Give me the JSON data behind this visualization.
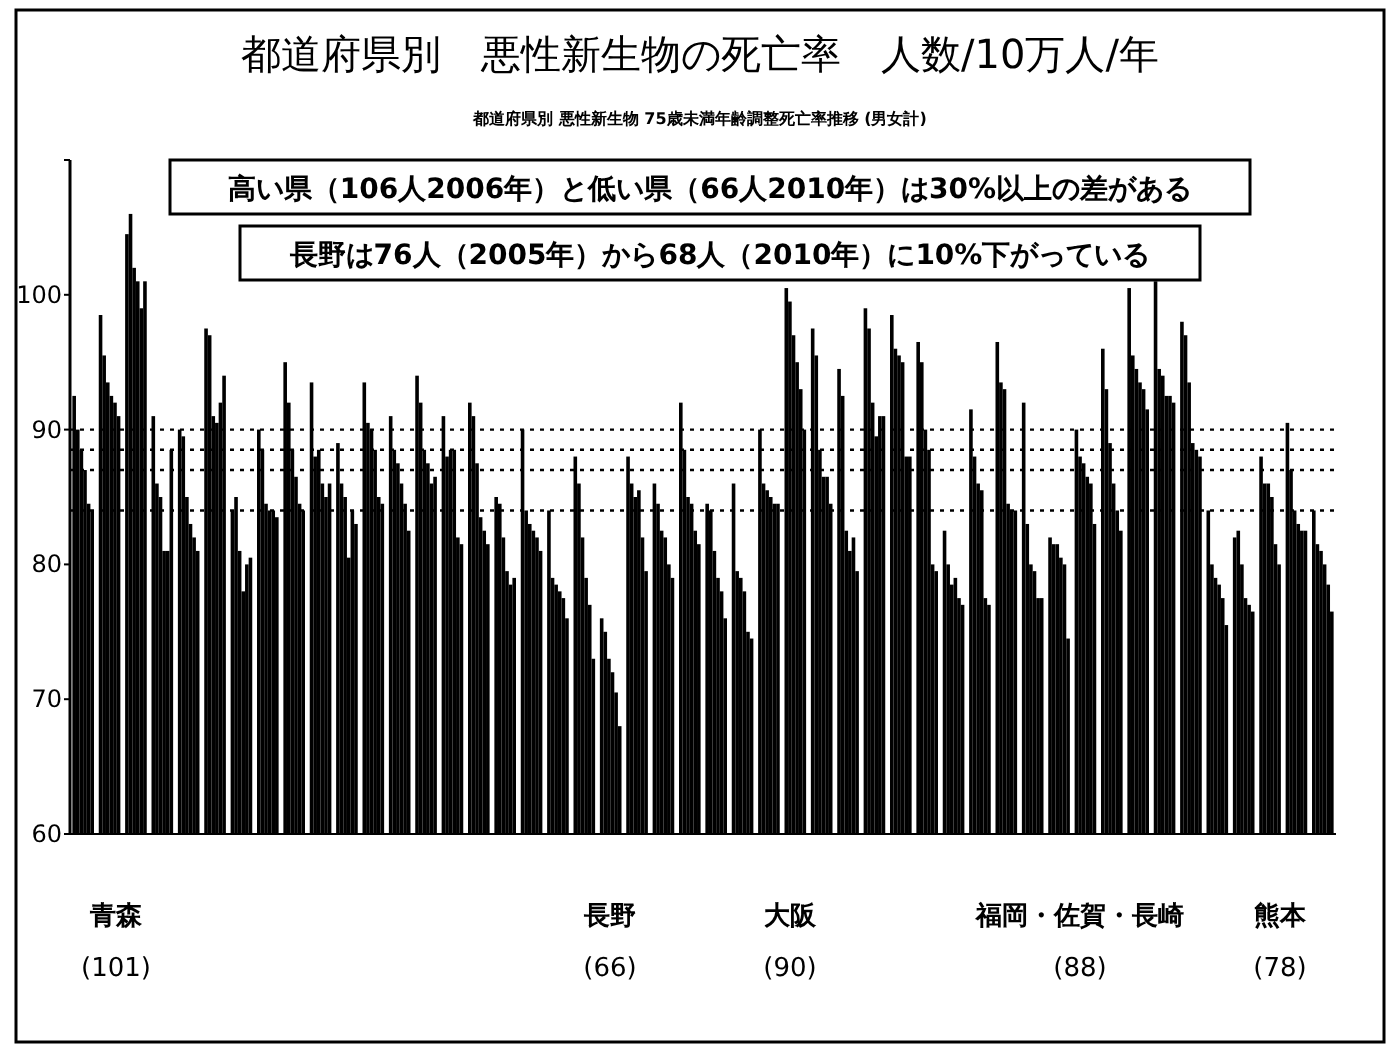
{
  "chart_data": {
    "type": "bar",
    "title": "都道府県別　悪性新生物の死亡率　人数/10万人/年",
    "subtitle": "都道府県別 悪性新生物 75歳未満年齢調整死亡率推移 (男女計)",
    "categories": [
      null,
      null,
      null,
      null,
      null,
      null,
      null,
      null,
      null,
      null,
      null,
      null,
      null,
      null,
      null,
      null,
      null,
      null,
      null,
      null,
      null,
      null,
      null,
      null,
      null,
      null,
      null,
      null,
      null,
      null,
      null,
      null,
      null,
      null,
      null,
      null,
      null,
      null,
      null,
      null,
      null,
      null,
      null,
      null,
      null,
      null,
      null,
      null
    ],
    "series": [
      {
        "color": "#000000",
        "values": [
          92.5,
          98.5,
          104.5,
          91,
          90,
          97.5,
          84,
          90,
          95,
          93.5,
          89,
          93.5,
          91,
          94,
          91,
          92,
          85,
          90,
          84,
          88,
          76,
          88,
          86,
          92,
          84.5,
          86,
          90,
          100.5,
          97.5,
          94.5,
          99,
          98.5,
          96.5,
          82.5,
          91.5,
          96.5,
          92,
          82,
          90,
          96,
          100.5,
          101,
          98,
          84,
          82,
          88,
          90.5,
          84
        ]
      },
      {
        "color": "#000000",
        "values": [
          90,
          95.5,
          106,
          86,
          89.5,
          97,
          85,
          88.5,
          92,
          88,
          86,
          90.5,
          88.5,
          92,
          88,
          91,
          84.5,
          84,
          79,
          86,
          75,
          86,
          84.5,
          88.5,
          84,
          79.5,
          86,
          99.5,
          95.5,
          92.5,
          97.5,
          96,
          95,
          80,
          88,
          93.5,
          83,
          81.5,
          88,
          93,
          95.5,
          94.5,
          97,
          80,
          82.5,
          86,
          87,
          81.5
        ]
      },
      {
        "color": "#000000",
        "values": [
          88.5,
          93.5,
          102,
          85,
          85,
          91,
          81,
          84.5,
          88.5,
          88.5,
          85,
          90,
          87.5,
          88.5,
          88.5,
          87.5,
          82,
          83,
          78.5,
          82,
          73,
          85,
          82.5,
          85,
          81,
          79,
          85.5,
          97,
          88.5,
          82.5,
          92,
          95.5,
          90,
          78.5,
          86,
          93,
          80,
          81.5,
          87.5,
          89,
          94.5,
          94,
          93.5,
          79,
          80,
          86,
          84,
          81
        ]
      },
      {
        "color": "#000000",
        "values": [
          87,
          92.5,
          101,
          81,
          83,
          90.5,
          78,
          84,
          86.5,
          86,
          80.5,
          88.5,
          86,
          87.5,
          88.5,
          83.5,
          79.5,
          82.5,
          78,
          79,
          72,
          85.5,
          82,
          84.5,
          79,
          78,
          85,
          95,
          86.5,
          81,
          89.5,
          95,
          88.5,
          79,
          85.5,
          84.5,
          79.5,
          80.5,
          86.5,
          86,
          93.5,
          92.5,
          89,
          78.5,
          77.5,
          85,
          83,
          80
        ]
      },
      {
        "color": "#000000",
        "values": [
          84.5,
          92,
          99,
          81,
          82,
          92,
          80,
          84,
          84.5,
          85,
          84,
          85,
          84.5,
          86,
          82,
          82.5,
          78.5,
          82,
          77.5,
          77,
          70.5,
          82,
          80,
          82.5,
          78,
          75,
          84.5,
          93,
          86.5,
          82,
          91,
          88,
          80,
          77.5,
          77.5,
          84,
          77.5,
          80,
          86,
          84,
          93,
          92.5,
          88.5,
          77.5,
          77,
          81.5,
          82.5,
          78.5
        ]
      },
      {
        "color": "#000000",
        "values": [
          84,
          91,
          101,
          88.5,
          81,
          94,
          80.5,
          83.5,
          84,
          86,
          83,
          84.5,
          82.5,
          86.5,
          81.5,
          81.5,
          79,
          81,
          76,
          73,
          68,
          79.5,
          79,
          81.5,
          76,
          74.5,
          84.5,
          90,
          84.5,
          79.5,
          91,
          88,
          79.5,
          77,
          77,
          84,
          77.5,
          74.5,
          83,
          82.5,
          91.5,
          92,
          88,
          75.5,
          76.5,
          80,
          82.5,
          76.5
        ]
      }
    ],
    "ylim": [
      60,
      110
    ],
    "yticks": [
      60,
      70,
      80,
      90,
      100,
      {
        "value": 110,
        "label": null
      }
    ],
    "ref_lines": [
      {
        "axis": "y",
        "value": 90,
        "line_style": "dotted",
        "color": "#000000"
      },
      {
        "axis": "y",
        "value": 88.5,
        "line_style": "dotted",
        "color": "#000000"
      },
      {
        "axis": "y",
        "value": 87,
        "line_style": "dotted",
        "color": "#000000"
      },
      {
        "axis": "y",
        "value": 84,
        "line_style": "dotted",
        "color": "#000000"
      }
    ],
    "annotations": [
      "高い県（106人2006年）と低い県（66人2010年）は30%以上の差がある",
      "長野は76人（2005年）から68人（2010年）に10%下がっている",
      "青森",
      "(101)",
      "長野",
      "(66)",
      "大阪",
      "(90)",
      "福岡・佐賀・長崎",
      "(88)",
      "熊本",
      "(78)"
    ]
  }
}
